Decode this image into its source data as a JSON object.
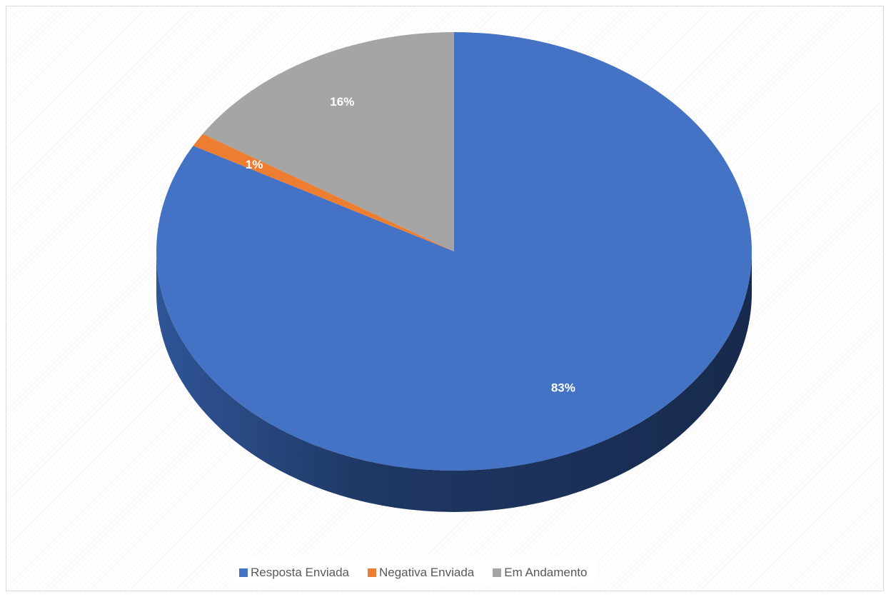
{
  "chart_data": {
    "type": "pie",
    "style": "3d",
    "title": "",
    "categories": [
      "Resposta Enviada",
      "Negativa Enviada",
      "Em Andamento"
    ],
    "values": [
      83,
      1,
      16
    ],
    "data_labels": [
      "83%",
      "1%",
      "16%"
    ],
    "colors": [
      "#4472C4",
      "#ED7D31",
      "#A5A5A5"
    ],
    "legend_position": "bottom",
    "unit": "percent"
  }
}
